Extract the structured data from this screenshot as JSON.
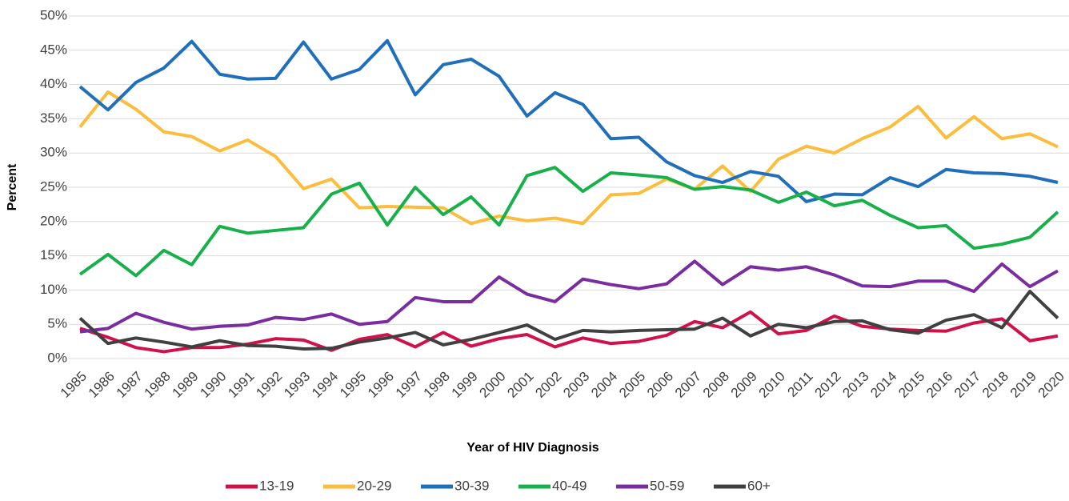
{
  "chart_data": {
    "type": "line",
    "x_label": "Year of HIV Diagnosis",
    "y_label": "Percent",
    "categories": [
      "1985",
      "1986",
      "1987",
      "1988",
      "1989",
      "1990",
      "1991",
      "1992",
      "1993",
      "1994",
      "1995",
      "1996",
      "1997",
      "1998",
      "1999",
      "2000",
      "2001",
      "2002",
      "2003",
      "2004",
      "2005",
      "2006",
      "2007",
      "2008",
      "2009",
      "2010",
      "2011",
      "2012",
      "2013",
      "2014",
      "2015",
      "2016",
      "2017",
      "2018",
      "2019",
      "2020"
    ],
    "series": [
      {
        "name": "13-19",
        "color": "#d0114a",
        "values": [
          4.4,
          3.1,
          1.6,
          1.0,
          1.6,
          1.6,
          2.1,
          2.9,
          2.7,
          1.2,
          2.8,
          3.5,
          1.7,
          3.8,
          1.8,
          2.9,
          3.5,
          1.7,
          3.0,
          2.2,
          2.5,
          3.4,
          5.4,
          4.5,
          6.8,
          3.6,
          4.1,
          6.2,
          4.7,
          4.3,
          4.1,
          4.0,
          5.2,
          5.8,
          2.6,
          3.3
        ]
      },
      {
        "name": "20-29",
        "color": "#fbbd3d",
        "values": [
          33.8,
          38.9,
          36.4,
          33.1,
          32.4,
          30.3,
          31.9,
          29.5,
          24.8,
          26.2,
          22.0,
          22.2,
          22.1,
          22.0,
          19.7,
          20.8,
          20.1,
          20.5,
          19.7,
          23.9,
          24.1,
          26.2,
          24.7,
          28.1,
          24.4,
          29.1,
          31.0,
          30.0,
          32.1,
          33.8,
          36.8,
          32.2,
          35.3,
          32.1,
          32.8,
          30.9
        ]
      },
      {
        "name": "30-39",
        "color": "#1f6fba",
        "values": [
          39.7,
          36.3,
          40.3,
          42.4,
          46.3,
          41.5,
          40.8,
          40.9,
          46.2,
          40.8,
          42.2,
          46.4,
          38.5,
          42.9,
          43.7,
          41.2,
          35.4,
          38.8,
          37.1,
          32.1,
          32.3,
          28.7,
          26.7,
          25.7,
          27.3,
          26.6,
          22.9,
          24.0,
          23.9,
          26.4,
          25.1,
          27.6,
          27.1,
          27.0,
          26.6,
          25.7
        ]
      },
      {
        "name": "40-49",
        "color": "#18b04a",
        "values": [
          12.3,
          15.2,
          12.1,
          15.8,
          13.7,
          19.3,
          18.3,
          18.7,
          19.1,
          24.0,
          25.6,
          19.5,
          25.0,
          21.0,
          23.6,
          19.5,
          26.7,
          27.9,
          24.4,
          27.1,
          26.8,
          26.4,
          24.7,
          25.1,
          24.6,
          22.8,
          24.3,
          22.3,
          23.1,
          20.9,
          19.1,
          19.4,
          16.1,
          16.7,
          17.7,
          21.4
        ]
      },
      {
        "name": "50-59",
        "color": "#7a2d9e",
        "values": [
          3.9,
          4.4,
          6.6,
          5.3,
          4.3,
          4.7,
          4.9,
          6.0,
          5.7,
          6.5,
          5.0,
          5.4,
          8.9,
          8.3,
          8.3,
          11.9,
          9.4,
          8.3,
          11.6,
          10.8,
          10.2,
          10.9,
          14.2,
          10.8,
          13.4,
          12.9,
          13.4,
          12.2,
          10.6,
          10.5,
          11.3,
          11.3,
          9.8,
          13.8,
          10.5,
          12.8
        ]
      },
      {
        "name": "60+",
        "color": "#404040",
        "values": [
          5.9,
          2.2,
          3.0,
          2.4,
          1.7,
          2.6,
          1.9,
          1.8,
          1.4,
          1.5,
          2.4,
          3.0,
          3.8,
          2.0,
          2.8,
          3.8,
          4.9,
          2.8,
          4.1,
          3.9,
          4.1,
          4.2,
          4.3,
          5.9,
          3.3,
          5.0,
          4.5,
          5.4,
          5.5,
          4.2,
          3.7,
          5.6,
          6.4,
          4.5,
          9.8,
          5.9
        ]
      }
    ],
    "ylim": [
      0,
      50
    ],
    "yticks": [
      {
        "value": 0,
        "label": "0%"
      },
      {
        "value": 5,
        "label": "5%"
      },
      {
        "value": 10,
        "label": "10%"
      },
      {
        "value": 15,
        "label": "15%"
      },
      {
        "value": 20,
        "label": "20%"
      },
      {
        "value": 25,
        "label": "25%"
      },
      {
        "value": 30,
        "label": "30%"
      },
      {
        "value": 35,
        "label": "35%"
      },
      {
        "value": 40,
        "label": "40%"
      },
      {
        "value": 45,
        "label": "45%"
      },
      {
        "value": 50,
        "label": "50%"
      }
    ],
    "grid": true,
    "legend": "bottom"
  }
}
